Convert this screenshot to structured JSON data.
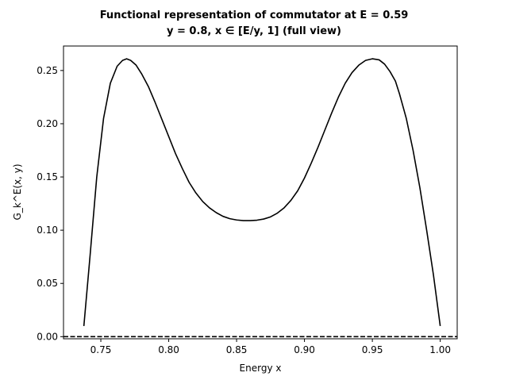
{
  "chart_data": {
    "type": "line",
    "title_line1": "Functional representation of commutator at E = 0.59",
    "title_line2": "y = 0.8, x ∈ [E/y, 1] (full view)",
    "xlabel": "Energy x",
    "ylabel": "G_k^E(x, y)",
    "xlim": [
      0.7225,
      1.0125
    ],
    "ylim": [
      -0.002,
      0.273
    ],
    "x_ticks": [
      0.75,
      0.8,
      0.85,
      0.9,
      0.95,
      1.0
    ],
    "x_tick_labels": [
      "0.75",
      "0.80",
      "0.85",
      "0.90",
      "0.95",
      "1.00"
    ],
    "y_ticks": [
      0.0,
      0.05,
      0.1,
      0.15,
      0.2,
      0.25
    ],
    "y_tick_labels": [
      "0.00",
      "0.05",
      "0.10",
      "0.15",
      "0.20",
      "0.25"
    ],
    "grid": false,
    "series": [
      {
        "line_color": "#000000",
        "line_style": "solid",
        "x": [
          0.7375,
          0.742,
          0.747,
          0.752,
          0.757,
          0.762,
          0.766,
          0.769,
          0.772,
          0.776,
          0.78,
          0.785,
          0.79,
          0.795,
          0.8,
          0.805,
          0.81,
          0.815,
          0.82,
          0.825,
          0.83,
          0.835,
          0.84,
          0.845,
          0.85,
          0.855,
          0.86,
          0.865,
          0.87,
          0.875,
          0.88,
          0.885,
          0.89,
          0.895,
          0.9,
          0.905,
          0.91,
          0.915,
          0.92,
          0.925,
          0.93,
          0.935,
          0.94,
          0.945,
          0.95,
          0.955,
          0.959,
          0.963,
          0.967,
          0.97,
          0.975,
          0.98,
          0.985,
          0.99,
          0.995,
          1.0
        ],
        "y": [
          0.01,
          0.075,
          0.15,
          0.205,
          0.238,
          0.254,
          0.2595,
          0.261,
          0.2595,
          0.255,
          0.247,
          0.235,
          0.22,
          0.204,
          0.188,
          0.172,
          0.158,
          0.145,
          0.135,
          0.127,
          0.121,
          0.1165,
          0.113,
          0.1108,
          0.1096,
          0.109,
          0.109,
          0.1094,
          0.1105,
          0.1125,
          0.116,
          0.121,
          0.128,
          0.137,
          0.149,
          0.163,
          0.178,
          0.194,
          0.21,
          0.225,
          0.238,
          0.248,
          0.255,
          0.2595,
          0.261,
          0.26,
          0.256,
          0.249,
          0.24,
          0.228,
          0.205,
          0.175,
          0.14,
          0.1,
          0.058,
          0.01
        ]
      },
      {
        "line_color": "#000000",
        "line_style": "dashed",
        "x": [
          0.7225,
          1.0125
        ],
        "y": [
          0.0,
          0.0
        ]
      }
    ]
  }
}
